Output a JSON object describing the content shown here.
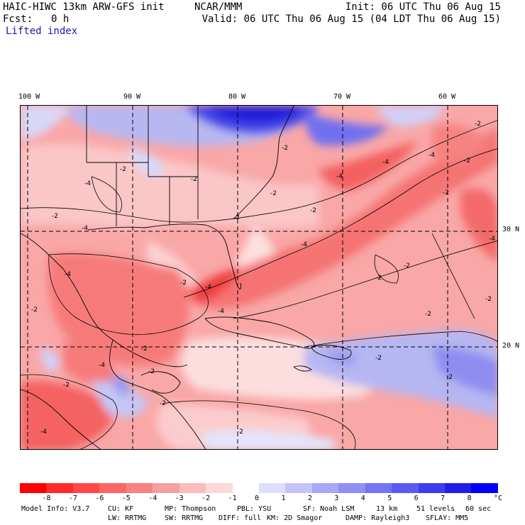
{
  "header": {
    "model_title": "HAIC-HIWC 13km ARW-GFS init",
    "org": "NCAR/MMM",
    "init": "Init: 06 UTC Thu 06 Aug 15",
    "fcst_label": "Fcst:",
    "fcst_value": "0 h",
    "valid": "Valid: 06 UTC Thu 06 Aug 15 (04 LDT Thu 06 Aug 15)",
    "field_name": "Lifted index"
  },
  "map": {
    "longitude_labels": [
      "100 W",
      "90 W",
      "80 W",
      "70 W",
      "60 W"
    ],
    "latitude_labels": [
      "30 N",
      "20 N"
    ],
    "contour_labels": [
      "-2",
      "-2",
      "-2",
      "-2",
      "-2",
      "-2",
      "-2",
      "-2",
      "-2",
      "-2",
      "-2",
      "-2",
      "-2",
      "-2",
      "-2",
      "-2",
      "-2",
      "-4",
      "-4",
      "-4",
      "-4",
      "-4",
      "-4",
      "-4",
      "-4",
      "-4",
      "-4",
      "-4",
      "-4",
      "-2",
      "-2",
      "-2",
      "-2",
      "-2",
      "-2"
    ]
  },
  "colorbar": {
    "colors": [
      "#ff0000",
      "#ff2a2a",
      "#ff4747",
      "#fb6565",
      "#f88282",
      "#f7a0a0",
      "#fbbcbc",
      "#fcdada",
      "#ffffff",
      "#dedeff",
      "#c4c4f8",
      "#a8a8f4",
      "#8f8ff4",
      "#7474f4",
      "#5a5af2",
      "#3d3df0",
      "#1e1ee8",
      "#0000ff"
    ],
    "tick_labels": [
      "-8",
      "-7",
      "-6",
      "-5",
      "-4",
      "-3",
      "-2",
      "-1",
      "0",
      "1",
      "2",
      "3",
      "4",
      "5",
      "6",
      "7",
      "8"
    ],
    "units": "°C"
  },
  "footer": {
    "line1": [
      "Model Info: V3.7",
      "CU: KF",
      "MP: Thompson",
      "PBL: YSU",
      "SF: Noah LSM",
      "13 km",
      "51 levels",
      "60 sec"
    ],
    "line2": [
      "LW: RRTMG",
      "SW: RRTMG",
      "DIFF: full",
      "KM: 2D Smagor",
      "DAMP: Rayleigh3",
      "SFLAY: MM5"
    ]
  }
}
